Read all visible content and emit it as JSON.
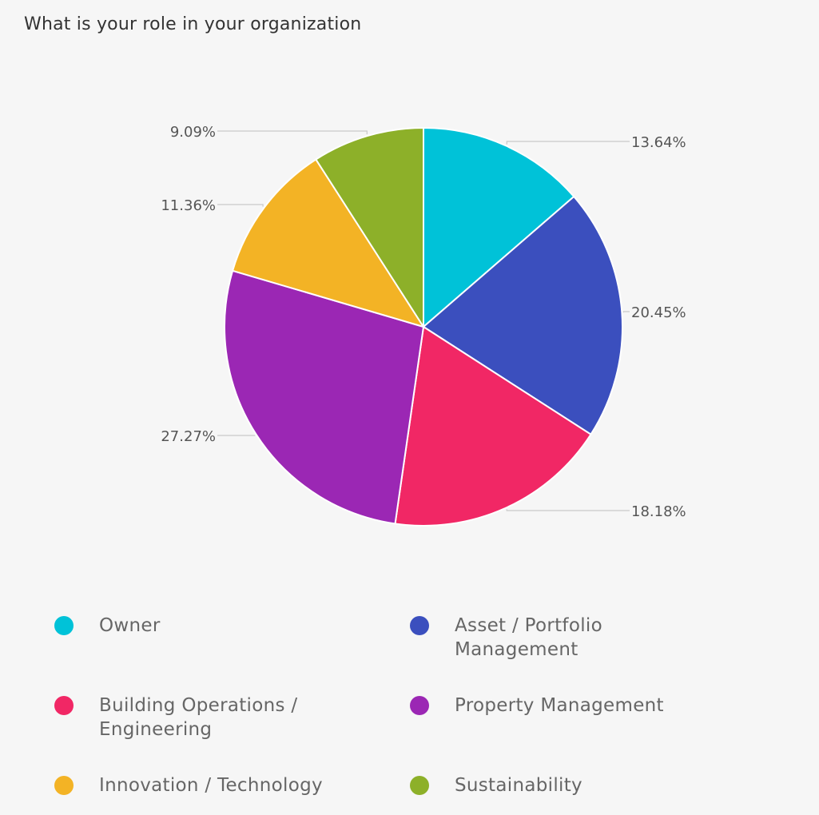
{
  "chart_data": {
    "type": "pie",
    "title": "What is your role in your organization",
    "legend_position": "bottom",
    "slices": [
      {
        "label": "Owner",
        "value": 13.64,
        "display": "13.64%",
        "color": "#00c2d8"
      },
      {
        "label": "Asset / Portfolio Management",
        "value": 20.45,
        "display": "20.45%",
        "color": "#3b4fbe"
      },
      {
        "label": "Building Operations / Engineering",
        "value": 18.18,
        "display": "18.18%",
        "color": "#f12765"
      },
      {
        "label": "Property Management",
        "value": 27.27,
        "display": "27.27%",
        "color": "#9b27b4"
      },
      {
        "label": "Innovation / Technology",
        "value": 11.36,
        "display": "11.36%",
        "color": "#f3b325"
      },
      {
        "label": "Sustainability",
        "value": 9.09,
        "display": "9.09%",
        "color": "#8db029"
      }
    ]
  },
  "legend": {
    "items": [
      {
        "label": "Owner",
        "color": "#00c2d8"
      },
      {
        "label": "Asset / Portfolio Management",
        "color": "#3b4fbe"
      },
      {
        "label": "Building Operations / Engineering",
        "color": "#f12765"
      },
      {
        "label": "Property Management",
        "color": "#9b27b4"
      },
      {
        "label": "Innovation / Technology",
        "color": "#f3b325"
      },
      {
        "label": "Sustainability",
        "color": "#8db029"
      }
    ]
  }
}
